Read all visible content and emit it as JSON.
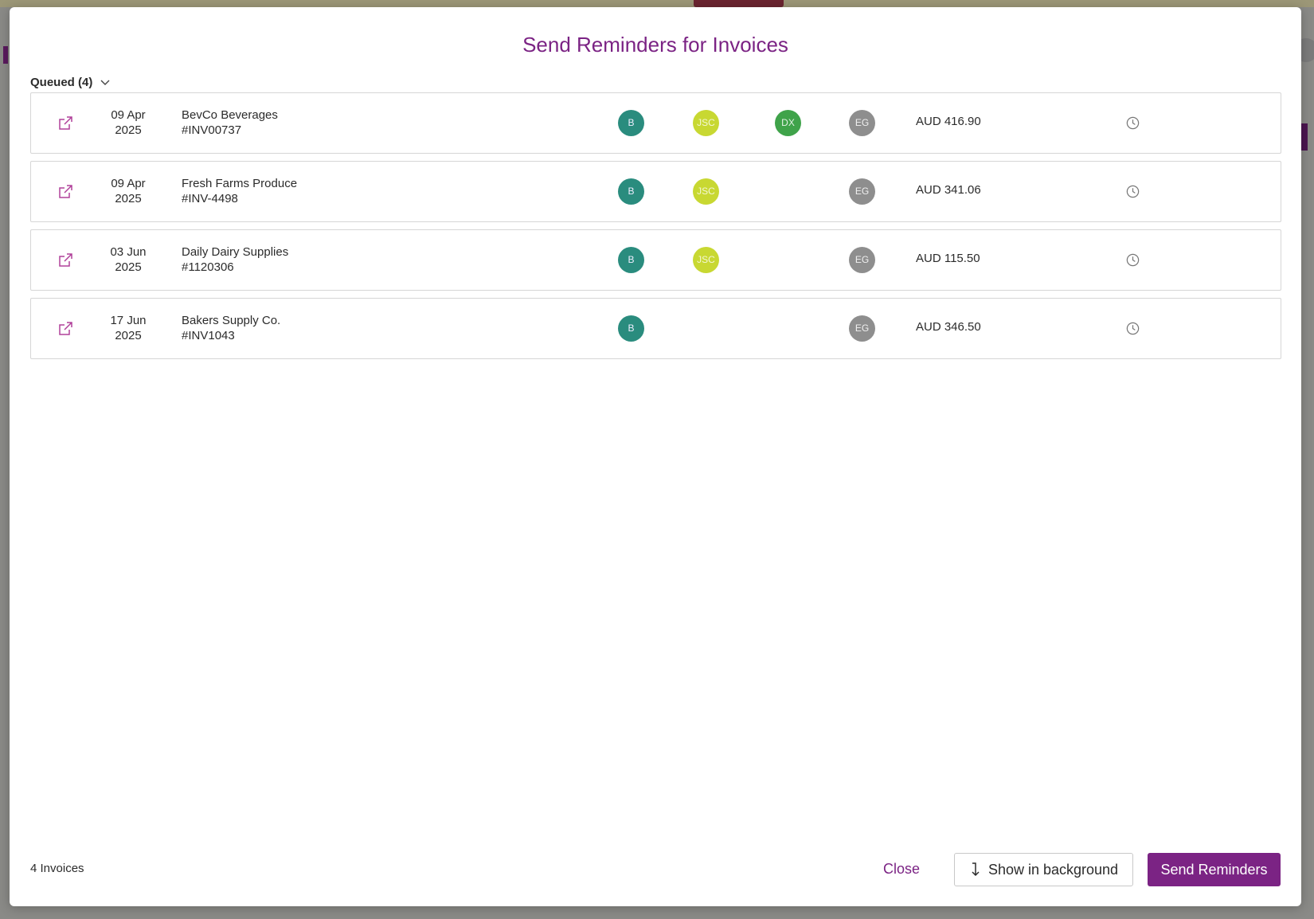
{
  "modal": {
    "title": "Send Reminders for Invoices",
    "queued_label": "Queued (4)",
    "footer_count": "4 Invoices",
    "buttons": {
      "close": "Close",
      "show_in_background": "Show in background",
      "send_reminders": "Send Reminders"
    }
  },
  "invoices": [
    {
      "date_line1": "09 Apr",
      "date_line2": "2025",
      "customer": "BevCo Beverages",
      "number": "#INV00737",
      "avatars": [
        "B",
        "JSC",
        "DX",
        "EG"
      ],
      "amount": "AUD 416.90"
    },
    {
      "date_line1": "09 Apr",
      "date_line2": "2025",
      "customer": "Fresh Farms Produce",
      "number": "#INV-4498",
      "avatars": [
        "B",
        "JSC",
        "",
        "EG"
      ],
      "amount": "AUD 341.06"
    },
    {
      "date_line1": "03 Jun",
      "date_line2": "2025",
      "customer": "Daily Dairy Supplies",
      "number": "#1120306",
      "avatars": [
        "B",
        "JSC",
        "",
        "EG"
      ],
      "amount": "AUD 115.50"
    },
    {
      "date_line1": "17 Jun",
      "date_line2": "2025",
      "customer": "Bakers Supply Co.",
      "number": "#INV1043",
      "avatars": [
        "B",
        "",
        "",
        "EG"
      ],
      "amount": "AUD 346.50"
    }
  ],
  "icons": {
    "open": "external-link-icon",
    "status": "clock-icon",
    "expand": "chevron-down-icon",
    "background": "arrow-down-icon"
  },
  "colors": {
    "accent": "#7b2384",
    "avatar_b": "#2a8c7e",
    "avatar_jsc": "#c8d832",
    "avatar_dx": "#3fa34a",
    "avatar_eg": "#8e8e8e"
  }
}
